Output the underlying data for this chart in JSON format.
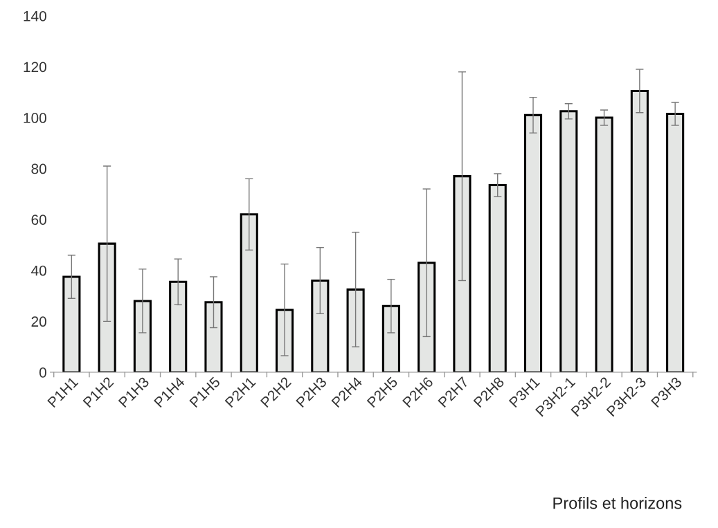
{
  "chart_data": {
    "type": "bar",
    "xlabel": "Profils et horizons",
    "categories": [
      "P1H1",
      "P1H2",
      "P1H3",
      "P1H4",
      "P1H5",
      "P2H1",
      "P2H2",
      "P2H3",
      "P2H4",
      "P2H5",
      "P2H6",
      "P2H7",
      "P2H8",
      "P3H1",
      "P3H2-1",
      "P3H2-2",
      "P3H2-3",
      "P3H3"
    ],
    "values": [
      37.5,
      50.5,
      28,
      35.5,
      27.5,
      62,
      24.5,
      36,
      32.5,
      26,
      43,
      77,
      73.5,
      101,
      102.5,
      100,
      110.5,
      101.5
    ],
    "errors": [
      8.5,
      30.5,
      12.5,
      9,
      10,
      14,
      18,
      13,
      22.5,
      10.5,
      29,
      41,
      4.5,
      7,
      3,
      3,
      8.5,
      4.5
    ],
    "color": "#e4e6e4",
    "ylim": [
      0,
      140
    ],
    "yticks": [
      0,
      20,
      40,
      60,
      80,
      100,
      120,
      140
    ],
    "grid": false
  }
}
